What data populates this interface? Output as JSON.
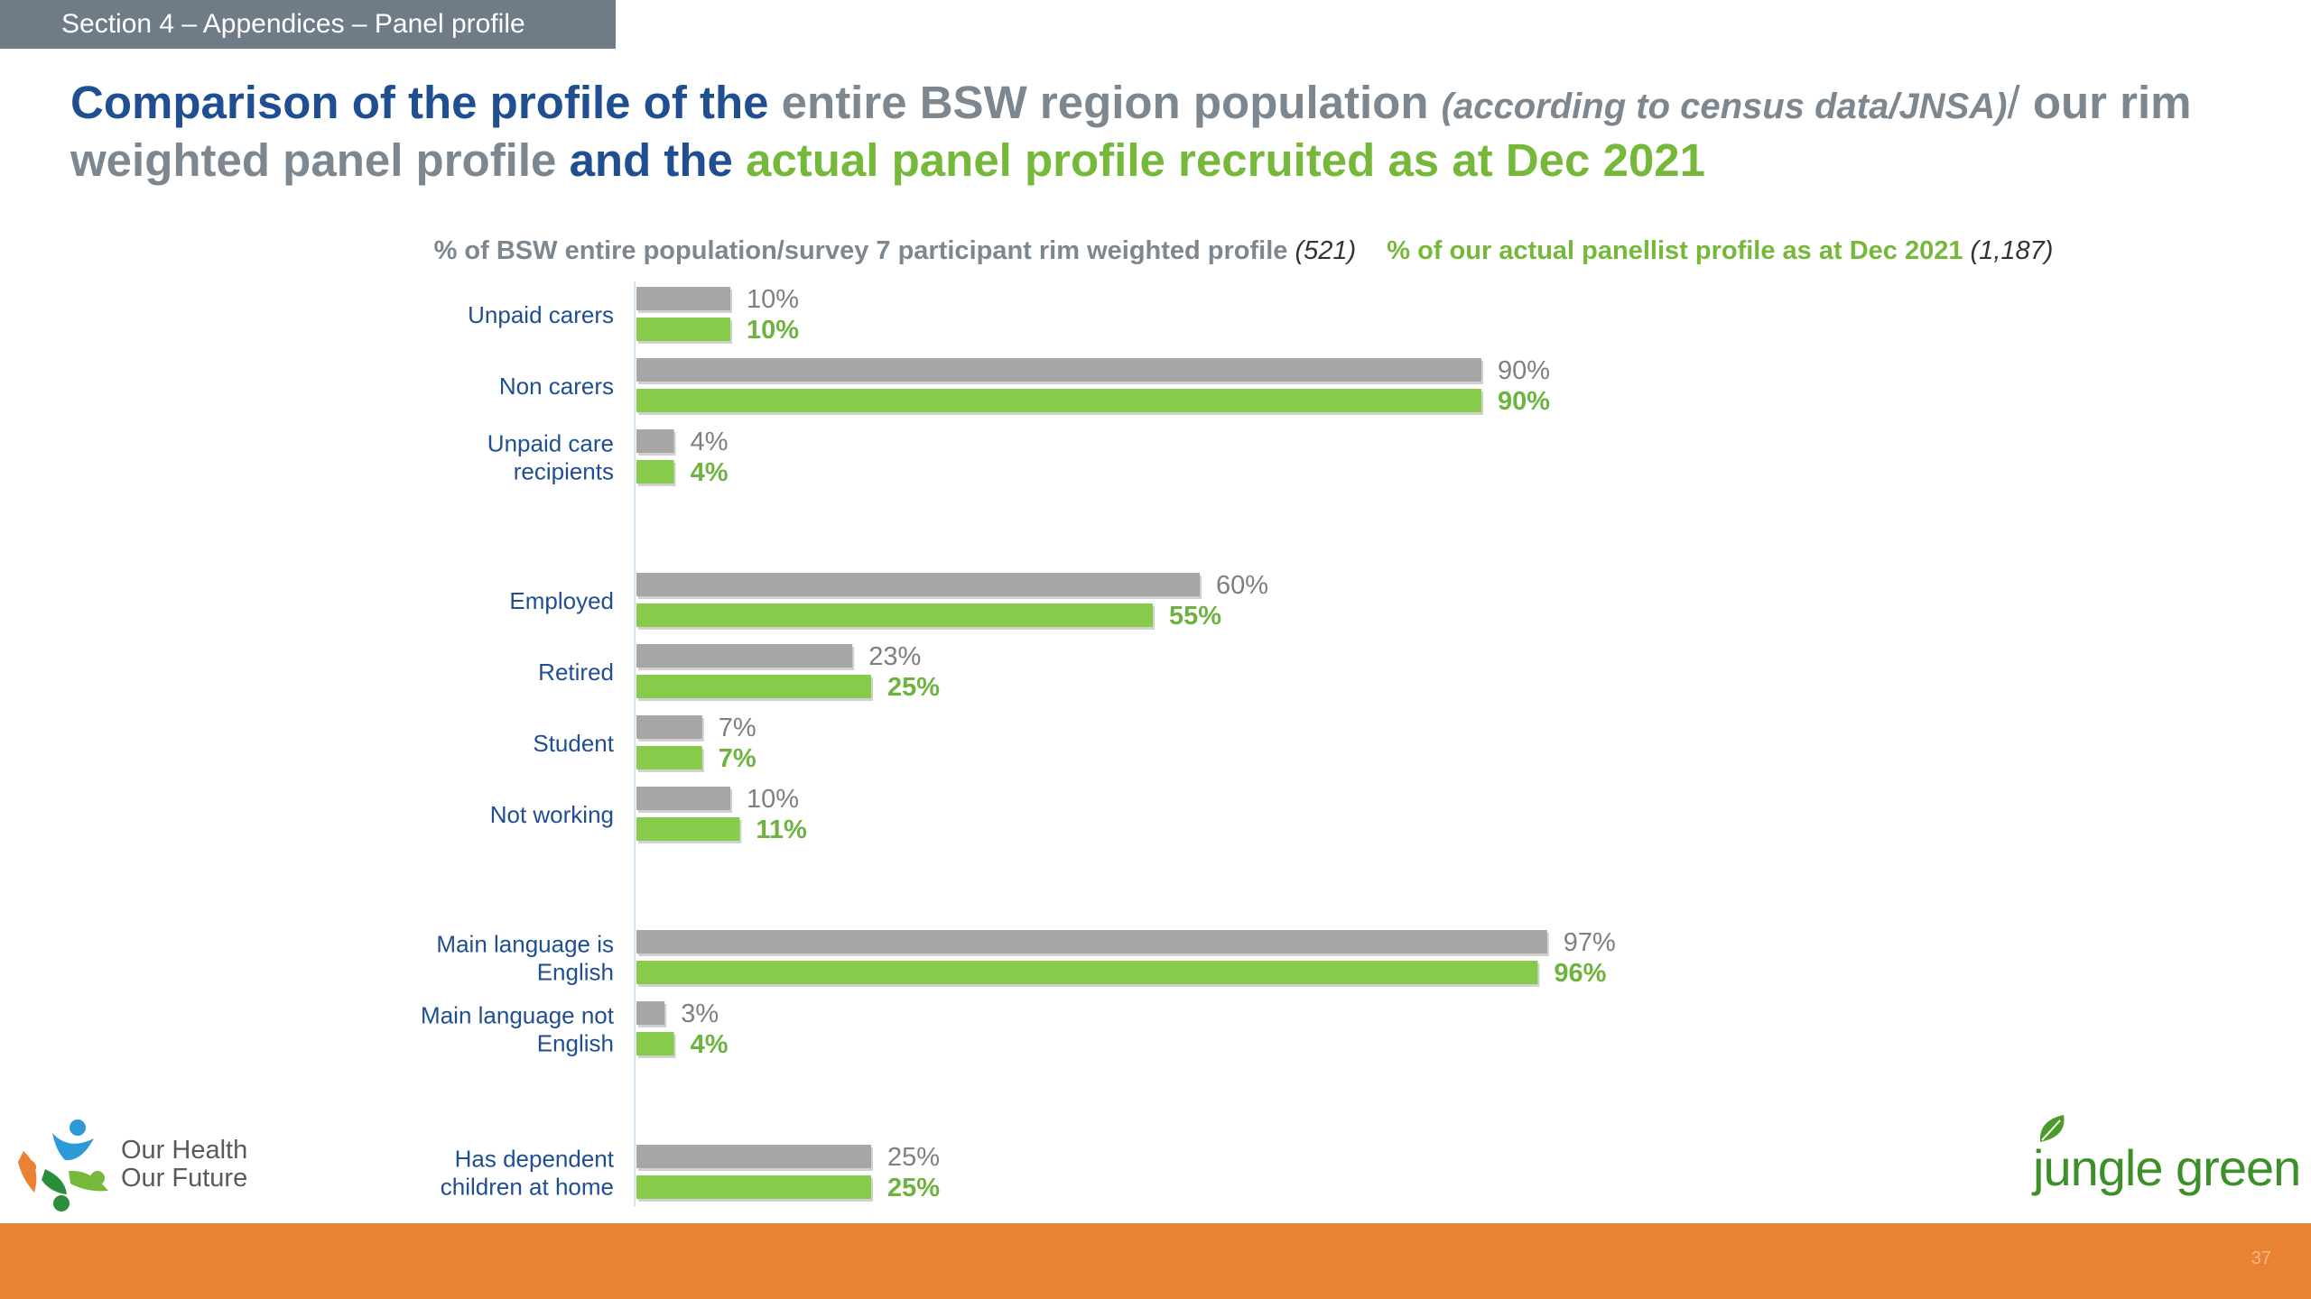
{
  "section_label": "Section 4 – Appendices – Panel profile",
  "title": {
    "part1": "Comparison of the profile of the",
    "part2": "entire BSW region population",
    "part3": "(according to census data/JNSA)",
    "part4": "/",
    "part5": "our rim weighted panel profile",
    "part6": "and the",
    "part7": "actual panel profile recruited as at Dec 2021"
  },
  "legend": {
    "grey_label": "% of BSW entire population/survey 7 participant rim weighted profile",
    "grey_n": "(521)",
    "green_label": "% of our actual panellist profile as at Dec 2021",
    "green_n": "(1,187)"
  },
  "colors": {
    "grey_bar": "#a6a6a6",
    "green_bar": "#86cc4a",
    "category_text": "#1f4e91",
    "grey_label_text": "#7f7f7f",
    "green_label_text": "#6db33f",
    "footer": "#e98232",
    "section_tab": "#6f7b87"
  },
  "chart_data": {
    "type": "bar",
    "orientation": "horizontal",
    "xlim": [
      0,
      100
    ],
    "value_suffix": "%",
    "grid": false,
    "categories": [
      "Unpaid carers",
      "Non carers",
      "Unpaid care recipients",
      "Employed",
      "Retired",
      "Student",
      "Not working",
      "Main language is English",
      "Main language not English",
      "Has dependent children at home"
    ],
    "groups": [
      [
        "Unpaid carers",
        "Non carers",
        "Unpaid care recipients"
      ],
      [
        "Employed",
        "Retired",
        "Student",
        "Not working"
      ],
      [
        "Main language is English",
        "Main language not English"
      ],
      [
        "Has dependent children at home"
      ]
    ],
    "series": [
      {
        "name": "% of BSW entire population/survey 7 participant rim weighted profile (521)",
        "color": "#a6a6a6",
        "values": [
          10,
          90,
          4,
          60,
          23,
          7,
          10,
          97,
          3,
          25
        ]
      },
      {
        "name": "% of our actual panellist profile as at Dec 2021 (1,187)",
        "color": "#86cc4a",
        "values": [
          10,
          90,
          4,
          55,
          25,
          7,
          11,
          96,
          4,
          25
        ]
      }
    ]
  },
  "logos": {
    "left_line1": "Our Health",
    "left_line2": "Our Future",
    "right": "jungle green"
  },
  "page_number": "37"
}
